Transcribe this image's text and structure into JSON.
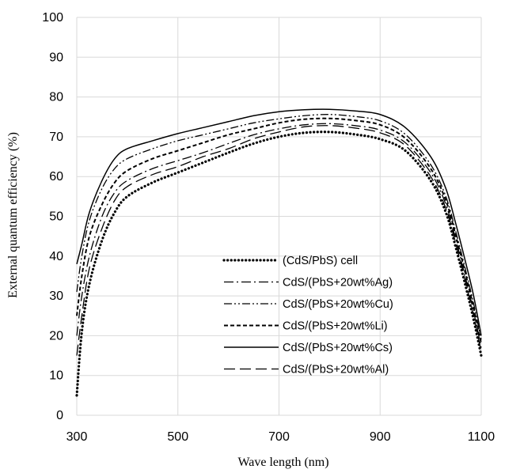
{
  "chart_data": {
    "type": "line",
    "title": "",
    "xlabel": "Wave length (nm)",
    "ylabel": "External quantum efficiency (%)",
    "xlim": [
      300,
      1100
    ],
    "ylim": [
      0,
      100
    ],
    "xticks": [
      "300",
      "500",
      "700",
      "900",
      "1100"
    ],
    "yticks": [
      "0",
      "10",
      "20",
      "30",
      "40",
      "50",
      "60",
      "70",
      "80",
      "90",
      "100"
    ],
    "grid": true,
    "legend_position": "center-right",
    "series": [
      {
        "name": "(CdS/PbS) cell",
        "line_style": "dotted",
        "x": [
          300,
          310,
          325,
          350,
          375,
          400,
          450,
          500,
          550,
          600,
          650,
          700,
          750,
          800,
          850,
          900,
          950,
          1000,
          1030,
          1050,
          1070,
          1085,
          1100
        ],
        "y": [
          5,
          21,
          33,
          44,
          51,
          55,
          58.5,
          61,
          63.5,
          66,
          68.3,
          70,
          71,
          71.2,
          70.6,
          69.4,
          66.5,
          59,
          51,
          42,
          32,
          24,
          15
        ]
      },
      {
        "name": "CdS/(PbS+20wt%Ag)",
        "line_style": "dash-dot",
        "x": [
          300,
          310,
          325,
          350,
          375,
          400,
          450,
          500,
          550,
          600,
          650,
          700,
          750,
          800,
          850,
          900,
          950,
          1000,
          1030,
          1050,
          1070,
          1085,
          1100
        ],
        "y": [
          20,
          30,
          40,
          50,
          56,
          59,
          62,
          64,
          66,
          68.3,
          70.5,
          72,
          73,
          73.3,
          72.8,
          71.7,
          68.5,
          61,
          53,
          44,
          34,
          26,
          17
        ]
      },
      {
        "name": "CdS/(PbS+20wt%Cu)",
        "line_style": "dash-dot-dot",
        "x": [
          300,
          310,
          325,
          350,
          375,
          400,
          450,
          500,
          550,
          600,
          650,
          700,
          750,
          800,
          850,
          900,
          950,
          1000,
          1030,
          1050,
          1070,
          1085,
          1100
        ],
        "y": [
          31,
          40,
          49,
          57,
          62,
          64.5,
          67,
          69,
          70.5,
          72,
          73.5,
          74.5,
          75.3,
          75.6,
          75.1,
          74,
          70.6,
          63,
          55,
          46,
          36,
          28,
          19
        ]
      },
      {
        "name": "CdS/(PbS+20wt%Li)",
        "line_style": "dashed",
        "x": [
          300,
          310,
          325,
          350,
          375,
          400,
          450,
          500,
          550,
          600,
          650,
          700,
          750,
          800,
          850,
          900,
          950,
          1000,
          1030,
          1050,
          1070,
          1085,
          1100
        ],
        "y": [
          25,
          35,
          45,
          53,
          58.5,
          61.5,
          64.5,
          66.5,
          68.5,
          70.5,
          72,
          73.5,
          74.4,
          74.6,
          74.1,
          73,
          69.6,
          62,
          54,
          45,
          35,
          27,
          18
        ]
      },
      {
        "name": "CdS/(PbS+20wt%Cs)",
        "line_style": "solid",
        "x": [
          300,
          310,
          325,
          350,
          375,
          400,
          450,
          500,
          550,
          600,
          650,
          700,
          750,
          800,
          850,
          900,
          950,
          1000,
          1030,
          1050,
          1070,
          1085,
          1100
        ],
        "y": [
          38,
          43,
          51,
          59,
          64.5,
          67,
          69,
          70.8,
          72.3,
          73.8,
          75.3,
          76.3,
          76.8,
          76.9,
          76.5,
          75.6,
          72.3,
          65,
          57,
          48,
          38,
          30,
          20
        ]
      },
      {
        "name": "CdS/(PbS+20wt%Al)",
        "line_style": "long-dash",
        "x": [
          300,
          310,
          325,
          350,
          375,
          400,
          450,
          500,
          550,
          600,
          650,
          700,
          750,
          800,
          850,
          900,
          950,
          1000,
          1030,
          1050,
          1070,
          1085,
          1100
        ],
        "y": [
          15,
          25,
          37,
          47,
          54,
          57.5,
          60.5,
          62.5,
          65,
          67,
          69.5,
          71.2,
          72.5,
          72.8,
          72.2,
          71,
          67.8,
          60,
          52,
          43,
          33,
          25,
          16
        ]
      }
    ]
  }
}
